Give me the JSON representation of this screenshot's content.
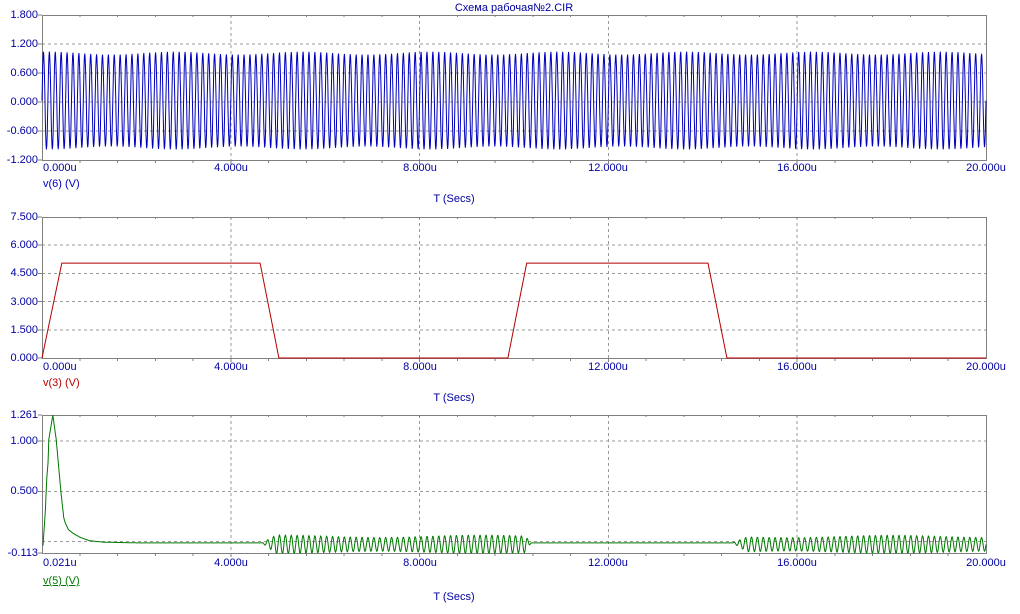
{
  "title": "Схема рабочая№2.CIR",
  "colors": {
    "background": "#FFFFFF",
    "axis_text": "#0000A0",
    "grid": "#9A9A9A",
    "border": "#808080",
    "trace_blue": "#0000BE",
    "trace_red": "#B40000",
    "trace_green": "#007800"
  },
  "x_axis_title": "T (Secs)",
  "chart_data": [
    {
      "type": "line",
      "title": "Схема рабочая№2.CIR",
      "xlabel": "T (Secs)",
      "trace_label": "v(6) (V)",
      "trace_color": "#0000BE",
      "selected": false,
      "x_range_us": [
        0,
        20
      ],
      "ylim": [
        -1.2,
        1.8
      ],
      "yticks": [
        {
          "label": "1.800",
          "v": 1.8
        },
        {
          "label": "1.200",
          "v": 1.2
        },
        {
          "label": "0.600",
          "v": 0.6
        },
        {
          "label": "0.000",
          "v": 0.0
        },
        {
          "label": "-0.600",
          "v": -0.6
        },
        {
          "label": "-1.200",
          "v": -1.2
        }
      ],
      "xticks": [
        {
          "label": "0.000u",
          "v": 0
        },
        {
          "label": "4.000u",
          "v": 4
        },
        {
          "label": "8.000u",
          "v": 8
        },
        {
          "label": "12.000u",
          "v": 12
        },
        {
          "label": "16.000u",
          "v": 16
        },
        {
          "label": "20.000u",
          "v": 20
        }
      ],
      "hgrid": [
        1.2,
        0.6,
        0.0,
        -0.6
      ],
      "vgrid": [
        4,
        8,
        12,
        16
      ],
      "signal": {
        "kind": "am_sine",
        "amplitude": 0.98,
        "offset": 0.03,
        "carrier_freq_per_us": 8,
        "am_depth": 0.03,
        "am_freq_per_us": 0.37
      }
    },
    {
      "type": "line",
      "title": "",
      "xlabel": "T (Secs)",
      "trace_label": "v(3) (V)",
      "trace_color": "#B40000",
      "selected": false,
      "x_range_us": [
        0,
        20
      ],
      "ylim": [
        0,
        7.5
      ],
      "yticks": [
        {
          "label": "7.500",
          "v": 7.5
        },
        {
          "label": "6.000",
          "v": 6.0
        },
        {
          "label": "4.500",
          "v": 4.5
        },
        {
          "label": "3.000",
          "v": 3.0
        },
        {
          "label": "1.500",
          "v": 1.5
        },
        {
          "label": "0.000",
          "v": 0.0
        }
      ],
      "xticks": [
        {
          "label": "0.000u",
          "v": 0
        },
        {
          "label": "4.000u",
          "v": 4
        },
        {
          "label": "8.000u",
          "v": 8
        },
        {
          "label": "12.000u",
          "v": 12
        },
        {
          "label": "16.000u",
          "v": 16
        },
        {
          "label": "20.000u",
          "v": 20
        }
      ],
      "hgrid": [
        6.0,
        4.5,
        3.0,
        1.5
      ],
      "vgrid": [
        4,
        8,
        12,
        16
      ],
      "signal": {
        "kind": "piecewise",
        "points": [
          [
            0,
            0
          ],
          [
            0.42,
            5.05
          ],
          [
            4.62,
            5.05
          ],
          [
            5.02,
            0
          ],
          [
            9.87,
            0
          ],
          [
            10.27,
            5.05
          ],
          [
            14.11,
            5.05
          ],
          [
            14.51,
            0
          ],
          [
            20,
            0
          ]
        ]
      }
    },
    {
      "type": "line",
      "title": "",
      "xlabel": "T (Secs)",
      "trace_label": "v(5) (V)",
      "trace_color": "#007800",
      "selected": true,
      "x_range_us": [
        0.021,
        20
      ],
      "ylim": [
        -0.113,
        1.261
      ],
      "yticks": [
        {
          "label": "1.261",
          "v": 1.261
        },
        {
          "label": "1.000",
          "v": 1.0
        },
        {
          "label": "0.500",
          "v": 0.5
        },
        {
          "label": "-0.113",
          "v": -0.113
        }
      ],
      "xticks": [
        {
          "label": "0.021u",
          "v": 0.021
        },
        {
          "label": "4.000u",
          "v": 4
        },
        {
          "label": "8.000u",
          "v": 8
        },
        {
          "label": "12.000u",
          "v": 12
        },
        {
          "label": "16.000u",
          "v": 16
        },
        {
          "label": "20.000u",
          "v": 20
        }
      ],
      "hgrid": [
        1.0,
        0.5,
        0.0
      ],
      "vgrid": [
        4,
        8,
        12,
        16
      ],
      "signal": {
        "kind": "spike_bursts",
        "base_points": [
          [
            0.021,
            -0.04
          ],
          [
            0.07,
            0.3
          ],
          [
            0.1,
            0.62
          ],
          [
            0.13,
            0.8
          ],
          [
            0.145,
            1.02
          ],
          [
            0.23,
            1.261
          ],
          [
            0.3,
            1.02
          ],
          [
            0.4,
            0.5
          ],
          [
            0.46,
            0.24
          ],
          [
            0.49,
            0.19
          ],
          [
            0.56,
            0.12
          ],
          [
            0.65,
            0.085
          ],
          [
            0.8,
            0.045
          ],
          [
            1.0,
            0.01
          ],
          [
            1.3,
            -0.005
          ],
          [
            2.0,
            -0.012
          ],
          [
            20,
            -0.012
          ]
        ],
        "carrier_freq_per_us": 8,
        "env_ripple": 0.15,
        "env_ripple_freq": 0.23,
        "bursts": [
          {
            "t0": 4.66,
            "t1": 10.36,
            "amp": 0.08,
            "bias": -0.015,
            "ramp_in": 0.3,
            "ramp_out": 0.12
          },
          {
            "t0": 14.64,
            "t1": 20.0,
            "amp": 0.078,
            "bias": -0.015,
            "ramp_in": 0.3,
            "ramp_out": 0
          }
        ]
      }
    }
  ]
}
